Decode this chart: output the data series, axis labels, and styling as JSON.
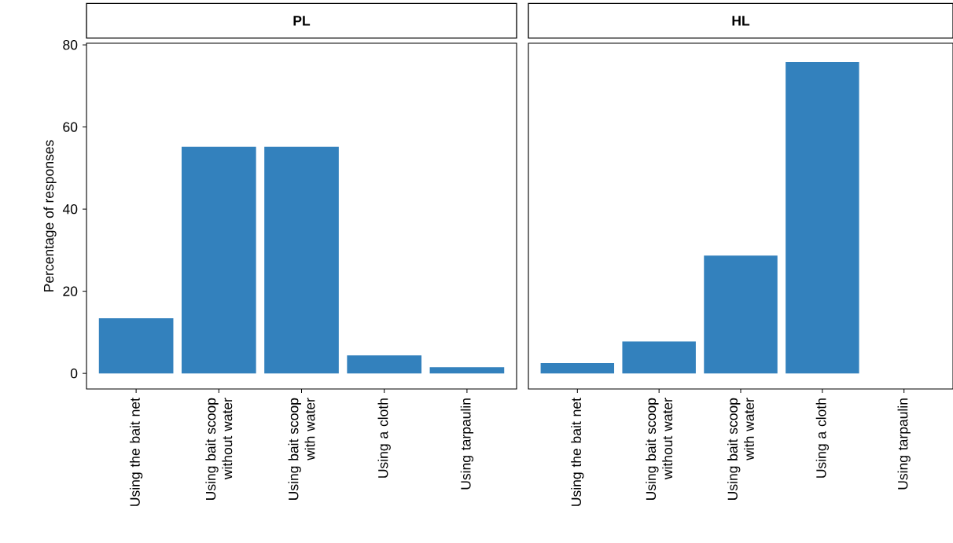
{
  "chart_data": [
    {
      "type": "bar",
      "title": "PL",
      "ylabel": "Percentage of responses",
      "categories": [
        "Using the bait net",
        "Using bait scoop without water",
        "Using bait scoop with water",
        "Using a cloth",
        "Using tarpaulin"
      ],
      "values": [
        13.4,
        55.2,
        55.2,
        4.4,
        1.5
      ],
      "color": "#3381bd",
      "ylim": [
        -3.8,
        80.4
      ],
      "yticks": [
        0,
        20,
        40,
        60,
        80
      ]
    },
    {
      "type": "bar",
      "title": "HL",
      "categories": [
        "Using the bait net",
        "Using bait scoop without water",
        "Using bait scoop with water",
        "Using a cloth",
        "Using tarpaulin"
      ],
      "values": [
        2.5,
        7.8,
        28.7,
        75.8,
        0
      ],
      "color": "#3381bd",
      "ylim": [
        -3.8,
        80.4
      ],
      "tick_labels": "x"
    }
  ]
}
